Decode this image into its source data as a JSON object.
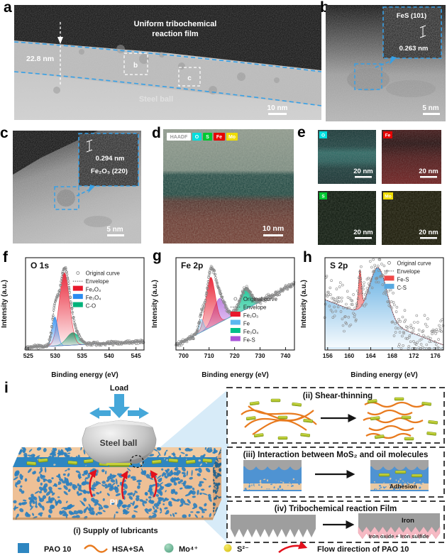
{
  "panels": {
    "a": {
      "letter": "a",
      "film_line1": "Uniform tribochemical",
      "film_line2": "reaction film",
      "thickness": "22.8 nm",
      "substrate": "Steel ball",
      "roi_b": "b",
      "roi_c": "c",
      "scalebar": "10 nm"
    },
    "b": {
      "letter": "b",
      "inset_phase": "FeS (101)",
      "inset_spacing": "0.263 nm",
      "scalebar": "5 nm"
    },
    "c": {
      "letter": "c",
      "inset_spacing": "0.294 nm",
      "inset_phase": "Fe₂O₃ (220)",
      "scalebar": "5 nm"
    },
    "d": {
      "letter": "d",
      "chips": [
        {
          "text": "HAADF",
          "bg": "#ffffff",
          "fg": "#9a9a9a"
        },
        {
          "text": "O",
          "bg": "#00dede",
          "fg": "#ffffff"
        },
        {
          "text": "S",
          "bg": "#00c832",
          "fg": "#ffffff"
        },
        {
          "text": "Fe",
          "bg": "#e60000",
          "fg": "#ffffff"
        },
        {
          "text": "Mo",
          "bg": "#efdc00",
          "fg": "#ffffff"
        }
      ],
      "scalebar": "10 nm"
    },
    "e": {
      "letter": "e",
      "maps": [
        {
          "label": "O",
          "color": "#00dede",
          "scalebar": "20 nm"
        },
        {
          "label": "Fe",
          "color": "#e60000",
          "scalebar": "20 nm"
        },
        {
          "label": "S",
          "color": "#00c832",
          "scalebar": "20 nm"
        },
        {
          "label": "Mo",
          "color": "#efdc00",
          "scalebar": "20 nm"
        }
      ]
    },
    "i": {
      "letter": "i",
      "load_label": "Load",
      "ball_label": "Steel ball",
      "pi_label": "PI",
      "caption": "(i) Supply of lubricants",
      "box_ii_title": "(ii) Shear-thinning",
      "box_iii_title": "(iii) Interaction between MoS₂ and oil molecules",
      "adhesion_label": "Adhesion",
      "box_iv_title": "(iv) Tribochemical reaction Film",
      "iron_label": "Iron",
      "oxide_label": "Iron oxide + Iron sulfide"
    }
  },
  "chart_data": [
    {
      "id": "f",
      "letter": "f",
      "type": "area",
      "title": "O 1s",
      "xlabel": "Binding energy (eV)",
      "ylabel": "Intensity (a.u.)",
      "xlim": [
        524.5,
        546.5
      ],
      "xticks": [
        525,
        530,
        535,
        540,
        545
      ],
      "grid": false,
      "legend_pos": [
        0.4,
        0.12
      ],
      "legend": [
        {
          "label": "Original curve",
          "marker": "scatter"
        },
        {
          "label": "Envelope",
          "marker": "dotted"
        },
        {
          "label": "Fe₂O₃",
          "marker": "swatch",
          "color": "#e8192c"
        },
        {
          "label": "Fe₃O₄",
          "marker": "swatch",
          "color": "#2a8cf0"
        },
        {
          "label": "C-O",
          "marker": "swatch",
          "color": "#00b27a"
        }
      ],
      "components": [
        {
          "name": "C-O",
          "color": "#00b27a",
          "center": 533.3,
          "sigma": 1.15,
          "amp": 0.17
        },
        {
          "name": "Fe₂O₃",
          "color": "#e8192c",
          "center": 531.7,
          "sigma": 0.95,
          "amp": 1.0
        },
        {
          "name": "Fe₃O₄",
          "color": "#2a8cf0",
          "center": 529.95,
          "sigma": 0.52,
          "amp": 0.4
        }
      ],
      "baseline": [
        0.035,
        0.115
      ],
      "noise": 0.022,
      "points": 300,
      "seed": 7,
      "stack": false
    },
    {
      "id": "g",
      "letter": "g",
      "type": "area",
      "title": "Fe 2p",
      "xlabel": "Binding energy (eV)",
      "ylabel": "Intensity (a.u.)",
      "xlim": [
        697,
        743.5
      ],
      "xticks": [
        700,
        710,
        720,
        730,
        740
      ],
      "grid": false,
      "legend_pos": [
        0.46,
        0.4
      ],
      "legend": [
        {
          "label": "Original curve",
          "marker": "scatter"
        },
        {
          "label": "Envelope",
          "marker": "dotted"
        },
        {
          "label": "Fe₂O₃",
          "marker": "swatch",
          "color": "#e8192c"
        },
        {
          "label": "Fe",
          "marker": "swatch",
          "color": "#5bb8f0"
        },
        {
          "label": "Fe₃O₄",
          "marker": "swatch",
          "color": "#00c08a"
        },
        {
          "label": "Fe-S",
          "marker": "swatch",
          "color": "#a855d8"
        }
      ],
      "components": [
        {
          "name": "Fe-S",
          "color": "#a855d8",
          "center": 714.0,
          "sigma": 2.3,
          "amp": 0.3
        },
        {
          "name": "Fe₂O₃",
          "color": "#e8192c",
          "center": 710.6,
          "sigma": 1.8,
          "amp": 0.62
        },
        {
          "name": "Fe₃O₄",
          "color": "#00c08a",
          "center": 724.3,
          "sigma": 2.1,
          "amp": 0.26
        },
        {
          "name": "Fe",
          "color": "#5bb8f0",
          "center": 706.9,
          "sigma": 0.9,
          "amp": 0.16
        }
      ],
      "baseline": [
        0.06,
        0.82
      ],
      "noise": 0.03,
      "points": 320,
      "seed": 11,
      "stack": false
    },
    {
      "id": "h",
      "letter": "h",
      "type": "area",
      "title": "S 2p",
      "xlabel": "Binding energy (eV)",
      "ylabel": "Intensity (a.u.)",
      "xlim": [
        155.5,
        177.5
      ],
      "xticks": [
        156,
        160,
        164,
        168,
        172,
        176
      ],
      "grid": false,
      "legend_pos": [
        0.5,
        0.01
      ],
      "legend": [
        {
          "label": "Original curve",
          "marker": "scatter"
        },
        {
          "label": "Envelope",
          "marker": "dotted"
        },
        {
          "label": "Fe-S",
          "marker": "swatch",
          "color": "#f04848"
        },
        {
          "label": "C-S",
          "marker": "swatch",
          "color": "#57a8e0"
        }
      ],
      "components": [
        {
          "name": "C-S",
          "color": "#57a8e0",
          "center": 165.4,
          "sigma": 1.6,
          "amp": 0.52
        },
        {
          "name": "Fe-S",
          "color": "#f04848",
          "center": 162.0,
          "sigma": 0.27,
          "amp": 0.38
        }
      ],
      "baseline": [
        0.5,
        0.05
      ],
      "noise": 0.2,
      "points": 240,
      "seed": 23,
      "stack": true
    }
  ],
  "legend": {
    "items": [
      {
        "label": "PAO 10",
        "marker": "square",
        "color": "#2e86c1"
      },
      {
        "label": "HSA+SA",
        "marker": "wave",
        "color": "#e87a1e"
      },
      {
        "label": "Mo⁴⁺",
        "marker": "circle",
        "color": "#79c1a3"
      },
      {
        "label": "S²⁻",
        "marker": "circle",
        "color": "#e8d41c"
      },
      {
        "label": "Flow direction of PAO 10",
        "marker": "arrow",
        "color": "#e3101c"
      }
    ]
  },
  "colors": {
    "dashed_blue": "#37a0e6",
    "arrow_blue": "#45a7d9",
    "triangle_blue": "#d7ebf8",
    "block_tan": "#eec096",
    "pore_blue": "#2b7fbf",
    "flow_red": "#e3101c",
    "platelet_green": "#b7cc33",
    "pink_film": "#f6bac4"
  }
}
